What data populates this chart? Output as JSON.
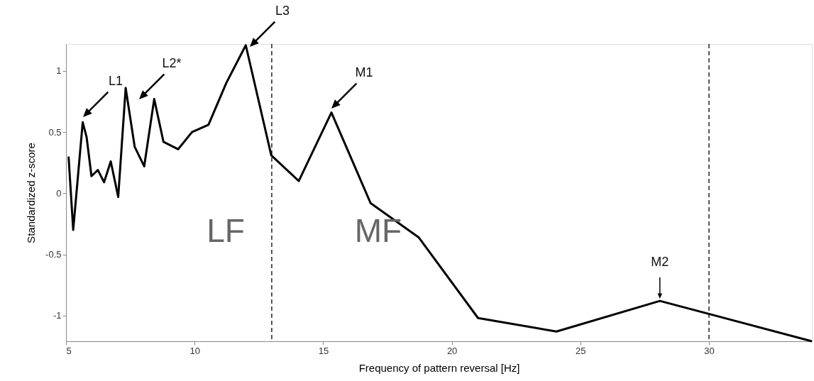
{
  "chart_data": {
    "type": "line",
    "xlabel": "Frequency of pattern reversal [Hz]",
    "ylabel": "Standardized z-score",
    "xlim": [
      5,
      34
    ],
    "ylim": [
      -1.21,
      1.22
    ],
    "xticks": [
      5,
      10,
      15,
      20,
      25,
      30
    ],
    "yticks": [
      -1,
      -0.5,
      0,
      0.5,
      1
    ],
    "grid": false,
    "marker": "none",
    "line_style": "solid",
    "series": [
      {
        "color": "#000000",
        "x": [
          5.1,
          5.28,
          5.65,
          5.8,
          5.99,
          6.24,
          6.48,
          6.74,
          7.03,
          7.32,
          7.67,
          8.04,
          8.43,
          8.79,
          9.36,
          9.9,
          10.54,
          11.23,
          11.99,
          12.98,
          14.05,
          15.32,
          16.84,
          18.71,
          21.02,
          24.07,
          28.09,
          34
        ],
        "values": [
          0.3,
          -0.3,
          0.58,
          0.46,
          0.14,
          0.19,
          0.09,
          0.26,
          -0.03,
          0.86,
          0.38,
          0.22,
          0.77,
          0.42,
          0.36,
          0.5,
          0.56,
          0.9,
          1.21,
          0.31,
          0.1,
          0.66,
          -0.08,
          -0.36,
          -1.02,
          -1.13,
          -0.88,
          -1.21
        ]
      }
    ],
    "ref_lines": [
      {
        "axis": "x",
        "value": 13,
        "color": "#000000",
        "line_style": "dashed"
      },
      {
        "axis": "x",
        "value": 30,
        "color": "#000000",
        "line_style": "dashed"
      }
    ],
    "annotations": [
      "L1",
      "L2*",
      "L3",
      "M1",
      {
        "text": "M2",
        "x": 28.09,
        "y": -0.88
      },
      "LF",
      "MF"
    ]
  }
}
